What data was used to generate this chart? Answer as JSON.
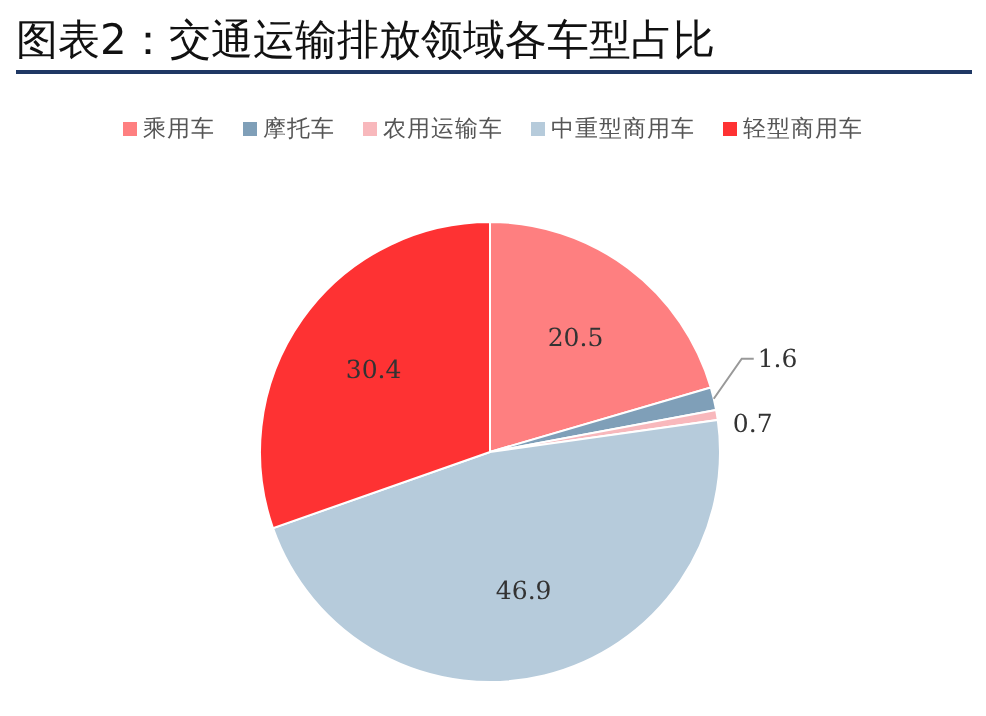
{
  "chart_data": {
    "type": "pie",
    "title": "图表2：交通运输排放领域各车型占比",
    "categories": [
      "乘用车",
      "摩托车",
      "农用运输车",
      "中重型商用车",
      "轻型商用车"
    ],
    "values": [
      20.5,
      1.6,
      0.7,
      46.9,
      30.4
    ],
    "colors": [
      "#fe7f80",
      "#7f9fb8",
      "#f8b8bc",
      "#b6cbdb",
      "#fe3233"
    ],
    "data_labels": true,
    "legend": "top"
  }
}
